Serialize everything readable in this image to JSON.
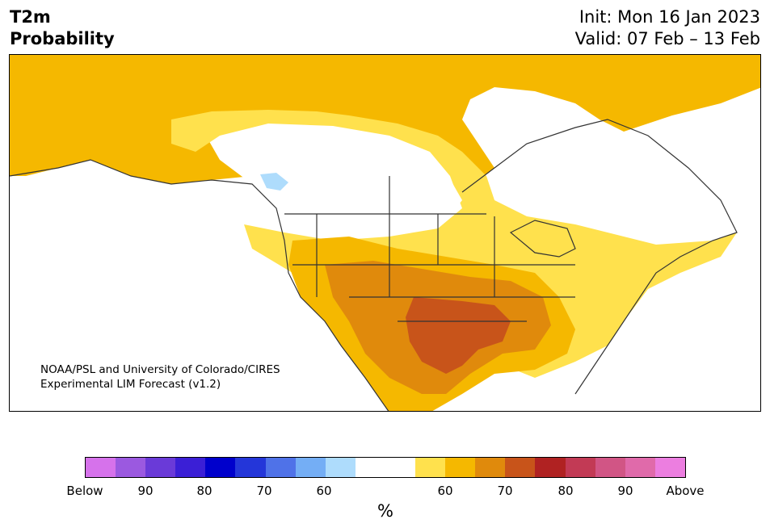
{
  "title": {
    "line1": "T2m",
    "line2": "Probability"
  },
  "header": {
    "init": "Init: Mon 16 Jan 2023",
    "valid": "Valid: 07 Feb – 13 Feb"
  },
  "credit": {
    "line1": "NOAA/PSL and University of Colorado/CIRES",
    "line2": "Experimental LIM Forecast (v1.2)"
  },
  "colorbar": {
    "colors": [
      "#d672eb",
      "#9b59e0",
      "#6a3ad8",
      "#3b1fd6",
      "#0000cc",
      "#2436d9",
      "#4f72e8",
      "#74aef5",
      "#aedcfc",
      "#ffffff",
      "#ffffff",
      "#ffe14d",
      "#f5b800",
      "#e08a0c",
      "#c8541a",
      "#b02222",
      "#c23a55",
      "#d15585",
      "#e06aaa",
      "#ec7ee0"
    ],
    "tick_labels": [
      "Below",
      "90",
      "80",
      "70",
      "60",
      "60",
      "70",
      "80",
      "90",
      "Above"
    ],
    "units": "%"
  },
  "legend_colors": {
    "prob_50_60_above": "#ffe14d",
    "prob_60_65_above": "#f5b800",
    "prob_65_70_above": "#e08a0c",
    "prob_70_75_above": "#c8541a",
    "prob_50_60_below": "#aedcfc"
  }
}
